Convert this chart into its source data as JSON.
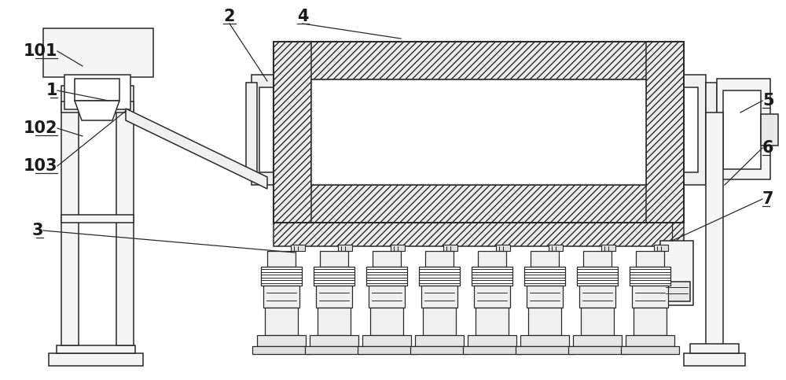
{
  "bg_color": "#ffffff",
  "line_color": "#2a2a2a",
  "figsize": [
    10.0,
    4.83
  ],
  "dpi": 100,
  "hatch_pattern": "////",
  "label_fontsize": 15,
  "label_color": "#1a1a1a"
}
